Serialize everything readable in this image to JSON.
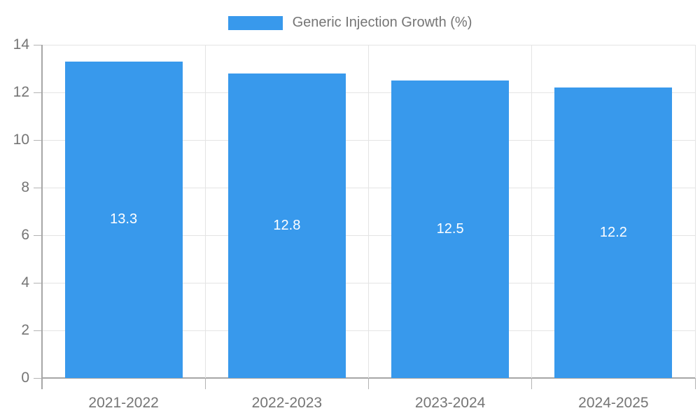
{
  "chart_data": {
    "type": "bar",
    "title": "Generic Injection Growth (%)",
    "categories": [
      "2021-2022",
      "2022-2023",
      "2023-2024",
      "2024-2025"
    ],
    "values": [
      13.3,
      12.8,
      12.5,
      12.2
    ],
    "value_labels": [
      "13.3",
      "12.8",
      "12.5",
      "12.2"
    ],
    "xlabel": "",
    "ylabel": "",
    "ylim": [
      0,
      14
    ],
    "yticks": [
      0,
      2,
      4,
      6,
      8,
      10,
      12,
      14
    ],
    "grid": "on",
    "legend_position": "top-center",
    "colors": {
      "bar": "#3899ec",
      "bar_label": "#ffffff",
      "axis_line": "#a6a6a6",
      "tick_mark": "#b3b3b3",
      "gridline": "#e4e4e4",
      "tick_label": "#757575",
      "legend_text": "#757575",
      "background": "#ffffff"
    }
  }
}
